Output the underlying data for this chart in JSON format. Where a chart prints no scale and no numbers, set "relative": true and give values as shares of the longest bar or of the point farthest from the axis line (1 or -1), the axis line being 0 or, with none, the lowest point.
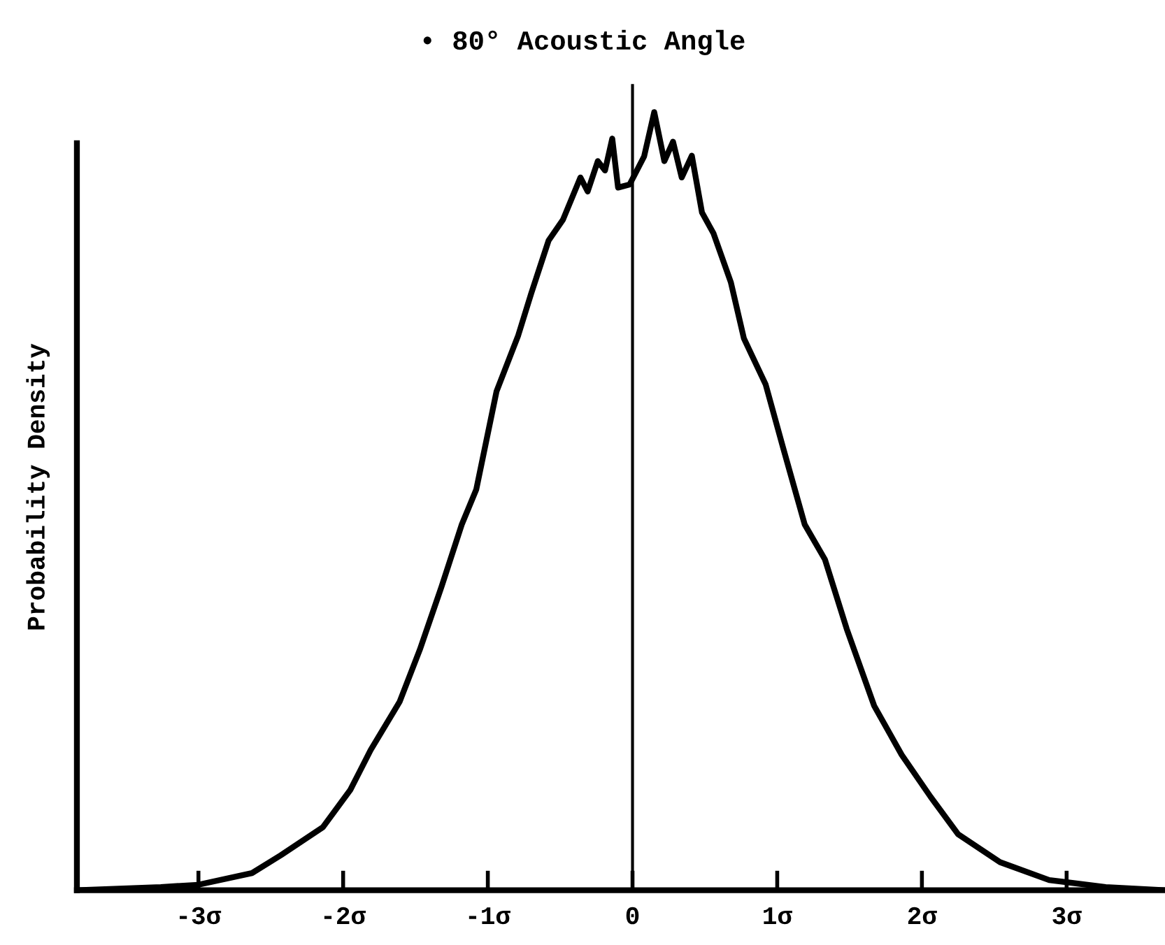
{
  "chart_data": {
    "type": "line",
    "title": "• 80° Acoustic Angle",
    "ylabel": "Probability Density",
    "relative": true,
    "x": [
      -3.84,
      -3.26,
      -3.0,
      -2.63,
      -2.43,
      -2.14,
      -1.95,
      -1.81,
      -1.61,
      -1.47,
      -1.32,
      -1.18,
      -1.08,
      -0.94,
      -0.79,
      -0.7,
      -0.58,
      -0.48,
      -0.36,
      -0.31,
      -0.24,
      -0.19,
      -0.14,
      -0.1,
      -0.02,
      0.08,
      0.15,
      0.22,
      0.28,
      0.34,
      0.41,
      0.48,
      0.56,
      0.68,
      0.77,
      0.92,
      1.04,
      1.19,
      1.33,
      1.48,
      1.67,
      1.86,
      2.06,
      2.25,
      2.54,
      2.88,
      3.27,
      3.68
    ],
    "series": [
      {
        "color": "#000000",
        "values": [
          0,
          0.004,
          0.007,
          0.022,
          0.045,
          0.081,
          0.129,
          0.18,
          0.242,
          0.309,
          0.39,
          0.47,
          0.515,
          0.641,
          0.713,
          0.767,
          0.835,
          0.862,
          0.916,
          0.898,
          0.937,
          0.925,
          0.966,
          0.903,
          0.907,
          0.943,
          1,
          0.937,
          0.962,
          0.916,
          0.944,
          0.871,
          0.844,
          0.781,
          0.709,
          0.65,
          0.569,
          0.47,
          0.425,
          0.336,
          0.237,
          0.174,
          0.12,
          0.072,
          0.036,
          0.013,
          0.004,
          0
        ]
      }
    ],
    "xlim": [
      -3.84,
      3.68
    ],
    "xticks": [
      {
        "value": -3,
        "label": "-3σ"
      },
      {
        "value": -2,
        "label": "-2σ"
      },
      {
        "value": -1,
        "label": "-1σ"
      },
      0,
      {
        "value": 1,
        "label": "1σ"
      },
      {
        "value": 2,
        "label": "2σ"
      },
      {
        "value": 3,
        "label": "3σ"
      }
    ],
    "ref_lines": [
      {
        "axis": "x",
        "value": 0,
        "color": "#000000"
      }
    ],
    "tick_labels": "x",
    "marker": "none",
    "line_style": "solid"
  }
}
